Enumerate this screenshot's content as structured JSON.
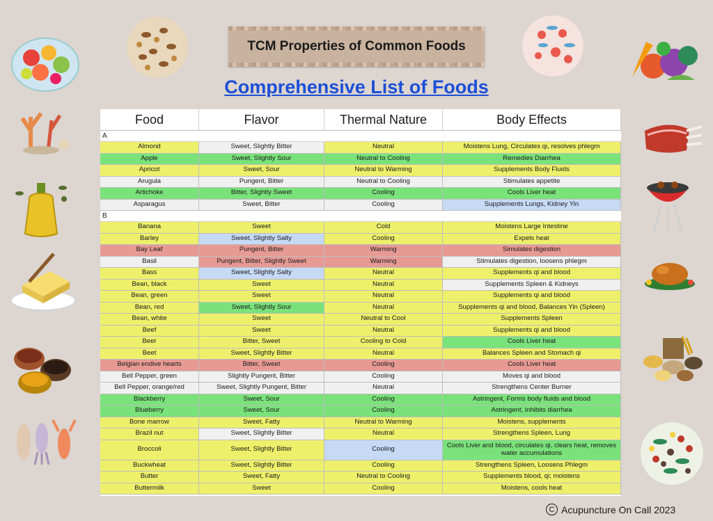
{
  "banner_title": "TCM Properties of Common Foods",
  "subtitle": "Comprehensive List of Foods",
  "columns": [
    "Food",
    "Flavor",
    "Thermal Nature",
    "Body Effects"
  ],
  "sections": [
    {
      "letter": "A",
      "rows": [
        {
          "food": "Almond",
          "flavor": "Sweet, Slightly Bitter",
          "thermal": "Neutral",
          "effects": "Moistens Lung, Circulates qi, resolves phlegm",
          "colors": [
            "y",
            "w",
            "y",
            "y"
          ]
        },
        {
          "food": "Apple",
          "flavor": "Sweet, Slightly Sour",
          "thermal": "Neutral to Cooling",
          "effects": "Remedies Diarrhea",
          "colors": [
            "g",
            "g",
            "g",
            "g"
          ]
        },
        {
          "food": "Apricot",
          "flavor": "Sweet, Sour",
          "thermal": "Neutral to Warming",
          "effects": "Supplements Body Fluids",
          "colors": [
            "y",
            "y",
            "y",
            "y"
          ]
        },
        {
          "food": "Arugula",
          "flavor": "Pungent, Bitter",
          "thermal": "Neutral to Cooling",
          "effects": "Stimulates appetite",
          "colors": [
            "w",
            "w",
            "w",
            "w"
          ]
        },
        {
          "food": "Artichoke",
          "flavor": "Bitter, Slightly Sweet",
          "thermal": "Cooling",
          "effects": "Cools Liver heat",
          "colors": [
            "g",
            "g",
            "g",
            "g"
          ]
        },
        {
          "food": "Asparagus",
          "flavor": "Sweet, Bitter",
          "thermal": "Cooling",
          "effects": "Supplements Lungs, Kidney Yin",
          "colors": [
            "w",
            "w",
            "w",
            "b"
          ]
        }
      ]
    },
    {
      "letter": "B",
      "rows": [
        {
          "food": "Banana",
          "flavor": "Sweet",
          "thermal": "Cold",
          "effects": "Moistens Large Intestine",
          "colors": [
            "y",
            "y",
            "y",
            "y"
          ]
        },
        {
          "food": "Barley",
          "flavor": "Sweet, Slightly Salty",
          "thermal": "Cooling",
          "effects": "Expels heat",
          "colors": [
            "y",
            "b",
            "y",
            "y"
          ]
        },
        {
          "food": "Bay Leaf",
          "flavor": "Pungent, Bitter",
          "thermal": "Warming",
          "effects": "Simulates digestion",
          "colors": [
            "r",
            "r",
            "r",
            "r"
          ]
        },
        {
          "food": "Basil",
          "flavor": "Pungent, Bitter, Slightly Sweet",
          "thermal": "Warming",
          "effects": "Stimulates digestion, loosens phlegm",
          "colors": [
            "w",
            "r",
            "r",
            "w"
          ]
        },
        {
          "food": "Bass",
          "flavor": "Sweet, Slightly Salty",
          "thermal": "Neutral",
          "effects": "Supplements qi and blood",
          "colors": [
            "y",
            "b",
            "y",
            "y"
          ]
        },
        {
          "food": "Bean, black",
          "flavor": "Sweet",
          "thermal": "Neutral",
          "effects": "Supplements Spleen & Kidneys",
          "colors": [
            "y",
            "y",
            "y",
            "w"
          ]
        },
        {
          "food": "Bean, green",
          "flavor": "Sweet",
          "thermal": "Neutral",
          "effects": "Supplements qi and blood",
          "colors": [
            "y",
            "y",
            "y",
            "y"
          ]
        },
        {
          "food": "Bean, red",
          "flavor": "Sweet, Slightly Sour",
          "thermal": "Neutral",
          "effects": "Supplements qi and blood, Balances Yin (Spleen)",
          "colors": [
            "y",
            "g",
            "y",
            "y"
          ]
        },
        {
          "food": "Bean, white",
          "flavor": "Sweet",
          "thermal": "Neutral to Cool",
          "effects": "Supplements Spleen",
          "colors": [
            "y",
            "y",
            "y",
            "y"
          ]
        },
        {
          "food": "Beef",
          "flavor": "Sweet",
          "thermal": "Neutral",
          "effects": "Supplements qi and blood",
          "colors": [
            "y",
            "y",
            "y",
            "y"
          ]
        },
        {
          "food": "Beer",
          "flavor": "Bitter, Sweet",
          "thermal": "Cooling to Cold",
          "effects": "Cools Liver heat",
          "colors": [
            "y",
            "y",
            "y",
            "g"
          ]
        },
        {
          "food": "Beet",
          "flavor": "Sweet, Slightly Bitter",
          "thermal": "Neutral",
          "effects": "Balances Spleen and Stomach qi",
          "colors": [
            "y",
            "y",
            "y",
            "y"
          ]
        },
        {
          "food": "Belgian endive hearts",
          "flavor": "Bitter, Sweet",
          "thermal": "Cooling",
          "effects": "Cools Liver heat",
          "colors": [
            "r",
            "r",
            "r",
            "r"
          ]
        },
        {
          "food": "Bell Pepper, green",
          "flavor": "Slightly Pungent, Bitter",
          "thermal": "Cooling",
          "effects": "Moves qi and blood",
          "colors": [
            "w",
            "w",
            "w",
            "w"
          ]
        },
        {
          "food": "Bell Pepper, orange/red",
          "flavor": "Sweet, Slightly Pungent, Bitter",
          "thermal": "Neutral",
          "effects": "Strengthens Center Burner",
          "colors": [
            "w",
            "w",
            "w",
            "w"
          ]
        },
        {
          "food": "Blackberry",
          "flavor": "Sweet, Sour",
          "thermal": "Cooling",
          "effects": "Astringent, Forms body fluids and blood",
          "colors": [
            "g",
            "g",
            "g",
            "g"
          ]
        },
        {
          "food": "Blueberry",
          "flavor": "Sweet, Sour",
          "thermal": "Cooling",
          "effects": "Astringent, inhibits diarrhea",
          "colors": [
            "g",
            "g",
            "g",
            "g"
          ]
        },
        {
          "food": "Bone marrow",
          "flavor": "Sweet, Fatty",
          "thermal": "Neutral to Warming",
          "effects": "Moistens, supplements",
          "colors": [
            "y",
            "y",
            "y",
            "y"
          ]
        },
        {
          "food": "Brazil nut",
          "flavor": "Sweet, Slightly Bitter",
          "thermal": "Neutral",
          "effects": "Strengthens Spleen, Lung",
          "colors": [
            "y",
            "w",
            "y",
            "y"
          ]
        },
        {
          "food": "Broccoli",
          "flavor": "Sweet, Slightly Bitter",
          "thermal": "Cooling",
          "effects": "Cools Liver and blood, circulates qi, clears heat, removes water accumulations",
          "colors": [
            "y",
            "y",
            "b",
            "g"
          ],
          "tall": true
        },
        {
          "food": "Buckwheat",
          "flavor": "Sweet, Slightly Bitter",
          "thermal": "Cooling",
          "effects": "Strengthens Spleen, Loosens Phlegm",
          "colors": [
            "y",
            "y",
            "y",
            "y"
          ]
        },
        {
          "food": "Butter",
          "flavor": "Sweet, Fatty",
          "thermal": "Neutral to Cooling",
          "effects": "Supplements blood, qi; moistens",
          "colors": [
            "y",
            "y",
            "y",
            "y"
          ]
        },
        {
          "food": "Buttermilk",
          "flavor": "Sweet",
          "thermal": "Cooling",
          "effects": "Moistens, cools heat",
          "colors": [
            "y",
            "y",
            "y",
            "y"
          ]
        }
      ]
    }
  ],
  "footer": {
    "symbol": "C",
    "text": "Acupuncture On Call 2023"
  }
}
